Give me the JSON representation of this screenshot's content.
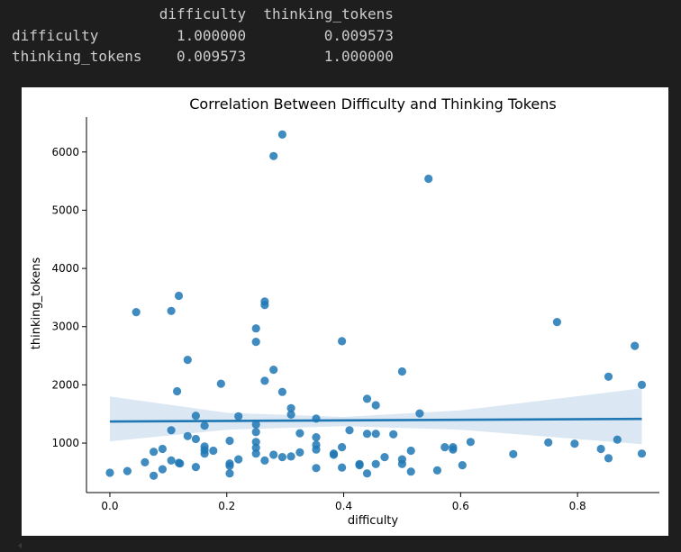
{
  "console": {
    "lines": [
      "                 difficulty  thinking_tokens",
      "difficulty         1.000000         0.009573",
      "thinking_tokens    0.009573         1.000000"
    ]
  },
  "colors": {
    "points": "#1f77b4",
    "regression_line": "#1f77b4",
    "confidence_band": "#dbe7f3",
    "background": "#1e1e1e",
    "console_text": "#cccccc"
  },
  "chart_data": {
    "type": "scatter",
    "title": "Correlation Between Difficulty and Thinking Tokens",
    "xlabel": "difficulty",
    "ylabel": "thinking_tokens",
    "xlim": [
      -0.04,
      0.94
    ],
    "ylim": [
      150,
      6600
    ],
    "x_ticks": [
      0.0,
      0.2,
      0.4,
      0.6,
      0.8
    ],
    "x_tick_labels": [
      "0.0",
      "0.2",
      "0.4",
      "0.6",
      "0.8"
    ],
    "y_ticks": [
      1000,
      2000,
      3000,
      4000,
      5000,
      6000
    ],
    "y_tick_labels": [
      "1000",
      "2000",
      "3000",
      "4000",
      "5000",
      "6000"
    ],
    "grid": false,
    "regression": {
      "x": [
        0.0,
        0.91
      ],
      "y": [
        1370,
        1415
      ],
      "ci_x": [
        0.0,
        0.2,
        0.4,
        0.6,
        0.91
      ],
      "ci_upper": [
        1800,
        1520,
        1450,
        1560,
        1940
      ],
      "ci_lower": [
        1030,
        1230,
        1290,
        1230,
        980
      ]
    },
    "points": [
      {
        "x": 0.0,
        "y": 490
      },
      {
        "x": 0.03,
        "y": 520
      },
      {
        "x": 0.045,
        "y": 3250
      },
      {
        "x": 0.06,
        "y": 670
      },
      {
        "x": 0.075,
        "y": 440
      },
      {
        "x": 0.075,
        "y": 850
      },
      {
        "x": 0.09,
        "y": 900
      },
      {
        "x": 0.09,
        "y": 550
      },
      {
        "x": 0.105,
        "y": 1220
      },
      {
        "x": 0.105,
        "y": 700
      },
      {
        "x": 0.105,
        "y": 3270
      },
      {
        "x": 0.115,
        "y": 1890
      },
      {
        "x": 0.118,
        "y": 660
      },
      {
        "x": 0.12,
        "y": 650
      },
      {
        "x": 0.118,
        "y": 3530
      },
      {
        "x": 0.133,
        "y": 2430
      },
      {
        "x": 0.133,
        "y": 1120
      },
      {
        "x": 0.147,
        "y": 1470
      },
      {
        "x": 0.147,
        "y": 1070
      },
      {
        "x": 0.147,
        "y": 590
      },
      {
        "x": 0.162,
        "y": 1300
      },
      {
        "x": 0.162,
        "y": 940
      },
      {
        "x": 0.162,
        "y": 880
      },
      {
        "x": 0.162,
        "y": 820
      },
      {
        "x": 0.177,
        "y": 870
      },
      {
        "x": 0.19,
        "y": 2020
      },
      {
        "x": 0.205,
        "y": 1040
      },
      {
        "x": 0.205,
        "y": 650
      },
      {
        "x": 0.205,
        "y": 610
      },
      {
        "x": 0.205,
        "y": 480
      },
      {
        "x": 0.22,
        "y": 1460
      },
      {
        "x": 0.22,
        "y": 720
      },
      {
        "x": 0.25,
        "y": 2970
      },
      {
        "x": 0.25,
        "y": 2740
      },
      {
        "x": 0.25,
        "y": 1320
      },
      {
        "x": 0.25,
        "y": 1190
      },
      {
        "x": 0.25,
        "y": 1020
      },
      {
        "x": 0.25,
        "y": 920
      },
      {
        "x": 0.25,
        "y": 820
      },
      {
        "x": 0.265,
        "y": 3430
      },
      {
        "x": 0.265,
        "y": 3370
      },
      {
        "x": 0.265,
        "y": 2070
      },
      {
        "x": 0.265,
        "y": 700
      },
      {
        "x": 0.28,
        "y": 5930
      },
      {
        "x": 0.28,
        "y": 2260
      },
      {
        "x": 0.28,
        "y": 800
      },
      {
        "x": 0.295,
        "y": 6300
      },
      {
        "x": 0.295,
        "y": 1880
      },
      {
        "x": 0.295,
        "y": 760
      },
      {
        "x": 0.31,
        "y": 1600
      },
      {
        "x": 0.31,
        "y": 1490
      },
      {
        "x": 0.31,
        "y": 770
      },
      {
        "x": 0.325,
        "y": 1170
      },
      {
        "x": 0.325,
        "y": 840
      },
      {
        "x": 0.353,
        "y": 1420
      },
      {
        "x": 0.353,
        "y": 1100
      },
      {
        "x": 0.353,
        "y": 970
      },
      {
        "x": 0.353,
        "y": 890
      },
      {
        "x": 0.353,
        "y": 570
      },
      {
        "x": 0.383,
        "y": 820
      },
      {
        "x": 0.383,
        "y": 800
      },
      {
        "x": 0.397,
        "y": 2750
      },
      {
        "x": 0.397,
        "y": 930
      },
      {
        "x": 0.397,
        "y": 580
      },
      {
        "x": 0.41,
        "y": 1220
      },
      {
        "x": 0.427,
        "y": 640
      },
      {
        "x": 0.427,
        "y": 620
      },
      {
        "x": 0.44,
        "y": 1760
      },
      {
        "x": 0.44,
        "y": 1160
      },
      {
        "x": 0.44,
        "y": 480
      },
      {
        "x": 0.455,
        "y": 1650
      },
      {
        "x": 0.455,
        "y": 1160
      },
      {
        "x": 0.455,
        "y": 640
      },
      {
        "x": 0.47,
        "y": 760
      },
      {
        "x": 0.485,
        "y": 1150
      },
      {
        "x": 0.5,
        "y": 2230
      },
      {
        "x": 0.5,
        "y": 720
      },
      {
        "x": 0.5,
        "y": 640
      },
      {
        "x": 0.515,
        "y": 870
      },
      {
        "x": 0.515,
        "y": 510
      },
      {
        "x": 0.53,
        "y": 1510
      },
      {
        "x": 0.545,
        "y": 5540
      },
      {
        "x": 0.56,
        "y": 530
      },
      {
        "x": 0.573,
        "y": 930
      },
      {
        "x": 0.587,
        "y": 930
      },
      {
        "x": 0.587,
        "y": 890
      },
      {
        "x": 0.603,
        "y": 620
      },
      {
        "x": 0.617,
        "y": 1020
      },
      {
        "x": 0.69,
        "y": 810
      },
      {
        "x": 0.75,
        "y": 1010
      },
      {
        "x": 0.765,
        "y": 3080
      },
      {
        "x": 0.795,
        "y": 990
      },
      {
        "x": 0.84,
        "y": 900
      },
      {
        "x": 0.853,
        "y": 2140
      },
      {
        "x": 0.853,
        "y": 740
      },
      {
        "x": 0.868,
        "y": 1060
      },
      {
        "x": 0.898,
        "y": 2670
      },
      {
        "x": 0.91,
        "y": 2000
      },
      {
        "x": 0.91,
        "y": 820
      }
    ]
  }
}
